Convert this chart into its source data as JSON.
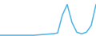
{
  "x": [
    0,
    1,
    2,
    3,
    4,
    5,
    6,
    7,
    8,
    9,
    10,
    11,
    12,
    13,
    14,
    15,
    16,
    17,
    18,
    19,
    20
  ],
  "y": [
    1,
    1,
    1,
    1,
    1,
    1,
    1,
    1,
    1.5,
    2,
    2.5,
    3,
    4,
    28,
    42,
    18,
    5,
    3,
    5,
    14,
    42
  ],
  "line_color": "#4db3e6",
  "linewidth": 1.1,
  "background_color": "#ffffff",
  "ylim": [
    0,
    48
  ],
  "xlim": [
    0,
    20
  ]
}
